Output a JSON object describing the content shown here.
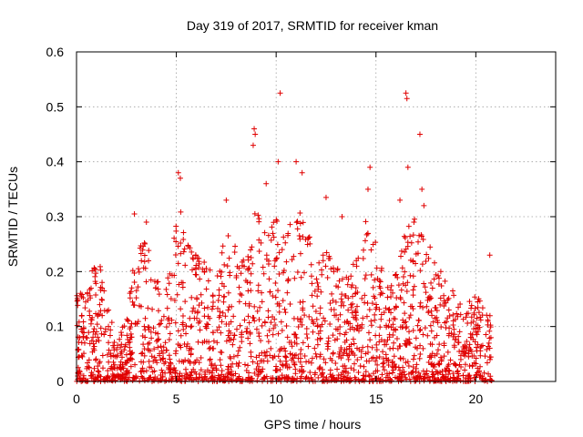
{
  "chart_data": {
    "type": "scatter",
    "title": "Day 319 of 2017, SRMTID for receiver kman",
    "xlabel": "GPS time / hours",
    "ylabel": "SRMTID / TECUs",
    "xlim": [
      0,
      24
    ],
    "ylim": [
      0,
      0.6
    ],
    "x_ticks": [
      "0",
      "5",
      "10",
      "15",
      "20"
    ],
    "y_ticks": [
      "0",
      "0.1",
      "0.2",
      "0.3",
      "0.4",
      "0.5",
      "0.6"
    ],
    "grid": true,
    "marker": "plus",
    "series_color": "#e00000",
    "x_extent": [
      0,
      20.8
    ],
    "peak_points": [
      {
        "x": 5.1,
        "y": 0.38
      },
      {
        "x": 5.2,
        "y": 0.37
      },
      {
        "x": 8.9,
        "y": 0.46
      },
      {
        "x": 8.95,
        "y": 0.45
      },
      {
        "x": 8.85,
        "y": 0.43
      },
      {
        "x": 10.2,
        "y": 0.525
      },
      {
        "x": 10.1,
        "y": 0.4
      },
      {
        "x": 11.0,
        "y": 0.4
      },
      {
        "x": 11.3,
        "y": 0.38
      },
      {
        "x": 14.7,
        "y": 0.39
      },
      {
        "x": 14.6,
        "y": 0.35
      },
      {
        "x": 16.5,
        "y": 0.525
      },
      {
        "x": 16.55,
        "y": 0.515
      },
      {
        "x": 16.6,
        "y": 0.39
      },
      {
        "x": 17.2,
        "y": 0.45
      },
      {
        "x": 17.3,
        "y": 0.35
      },
      {
        "x": 17.4,
        "y": 0.32
      },
      {
        "x": 2.9,
        "y": 0.305
      },
      {
        "x": 3.5,
        "y": 0.29
      },
      {
        "x": 7.5,
        "y": 0.33
      },
      {
        "x": 9.5,
        "y": 0.36
      },
      {
        "x": 12.5,
        "y": 0.335
      },
      {
        "x": 13.3,
        "y": 0.3
      },
      {
        "x": 16.2,
        "y": 0.33
      },
      {
        "x": 20.7,
        "y": 0.23
      }
    ],
    "envelope": [
      {
        "x": 0.0,
        "y": 0.17
      },
      {
        "x": 0.5,
        "y": 0.16
      },
      {
        "x": 1.0,
        "y": 0.24
      },
      {
        "x": 1.5,
        "y": 0.17
      },
      {
        "x": 2.0,
        "y": 0.06
      },
      {
        "x": 2.5,
        "y": 0.13
      },
      {
        "x": 3.0,
        "y": 0.26
      },
      {
        "x": 3.5,
        "y": 0.26
      },
      {
        "x": 4.0,
        "y": 0.18
      },
      {
        "x": 4.5,
        "y": 0.2
      },
      {
        "x": 5.0,
        "y": 0.35
      },
      {
        "x": 5.5,
        "y": 0.26
      },
      {
        "x": 6.0,
        "y": 0.24
      },
      {
        "x": 6.5,
        "y": 0.22
      },
      {
        "x": 7.0,
        "y": 0.2
      },
      {
        "x": 7.5,
        "y": 0.27
      },
      {
        "x": 8.0,
        "y": 0.25
      },
      {
        "x": 8.5,
        "y": 0.22
      },
      {
        "x": 9.0,
        "y": 0.32
      },
      {
        "x": 9.5,
        "y": 0.3
      },
      {
        "x": 10.0,
        "y": 0.3
      },
      {
        "x": 10.5,
        "y": 0.26
      },
      {
        "x": 11.0,
        "y": 0.33
      },
      {
        "x": 11.5,
        "y": 0.3
      },
      {
        "x": 12.0,
        "y": 0.22
      },
      {
        "x": 12.5,
        "y": 0.25
      },
      {
        "x": 13.0,
        "y": 0.22
      },
      {
        "x": 13.5,
        "y": 0.2
      },
      {
        "x": 14.0,
        "y": 0.24
      },
      {
        "x": 14.5,
        "y": 0.3
      },
      {
        "x": 15.0,
        "y": 0.26
      },
      {
        "x": 15.5,
        "y": 0.18
      },
      {
        "x": 16.0,
        "y": 0.2
      },
      {
        "x": 16.5,
        "y": 0.28
      },
      {
        "x": 17.0,
        "y": 0.3
      },
      {
        "x": 17.5,
        "y": 0.27
      },
      {
        "x": 18.0,
        "y": 0.22
      },
      {
        "x": 18.5,
        "y": 0.18
      },
      {
        "x": 19.0,
        "y": 0.16
      },
      {
        "x": 19.5,
        "y": 0.14
      },
      {
        "x": 20.0,
        "y": 0.17
      },
      {
        "x": 20.5,
        "y": 0.14
      },
      {
        "x": 20.8,
        "y": 0.12
      }
    ]
  }
}
